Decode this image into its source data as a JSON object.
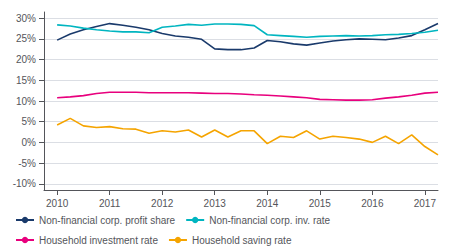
{
  "chart_data": {
    "type": "line",
    "x": [
      2010.0,
      2010.25,
      2010.5,
      2010.75,
      2011.0,
      2011.25,
      2011.5,
      2011.75,
      2012.0,
      2012.25,
      2012.5,
      2012.75,
      2013.0,
      2013.25,
      2013.5,
      2013.75,
      2014.0,
      2014.25,
      2014.5,
      2014.75,
      2015.0,
      2015.25,
      2015.5,
      2015.75,
      2016.0,
      2016.25,
      2016.5,
      2016.75,
      2017.0,
      2017.25
    ],
    "series": [
      {
        "name": "Non-financial corp. profit share",
        "color": "#1a3a6b",
        "values": [
          0.247,
          0.262,
          0.272,
          0.28,
          0.287,
          0.283,
          0.278,
          0.272,
          0.263,
          0.257,
          0.254,
          0.249,
          0.226,
          0.224,
          0.224,
          0.228,
          0.246,
          0.243,
          0.238,
          0.235,
          0.24,
          0.245,
          0.248,
          0.25,
          0.249,
          0.248,
          0.252,
          0.258,
          0.272,
          0.287
        ]
      },
      {
        "name": "Non-financial corp. inv. rate",
        "color": "#00b5c0",
        "values": [
          0.284,
          0.281,
          0.276,
          0.272,
          0.269,
          0.267,
          0.267,
          0.265,
          0.278,
          0.281,
          0.285,
          0.283,
          0.286,
          0.286,
          0.285,
          0.282,
          0.26,
          0.258,
          0.256,
          0.254,
          0.256,
          0.257,
          0.258,
          0.257,
          0.258,
          0.26,
          0.261,
          0.263,
          0.266,
          0.271
        ]
      },
      {
        "name": "Household investment rate",
        "color": "#e8007d",
        "values": [
          0.108,
          0.11,
          0.113,
          0.118,
          0.121,
          0.121,
          0.121,
          0.12,
          0.12,
          0.12,
          0.12,
          0.119,
          0.118,
          0.118,
          0.117,
          0.115,
          0.114,
          0.112,
          0.11,
          0.108,
          0.104,
          0.103,
          0.102,
          0.102,
          0.103,
          0.107,
          0.11,
          0.114,
          0.119,
          0.121
        ]
      },
      {
        "name": "Household saving rate",
        "color": "#f5a400",
        "values": [
          0.042,
          0.058,
          0.04,
          0.036,
          0.038,
          0.033,
          0.032,
          0.022,
          0.028,
          0.025,
          0.03,
          0.013,
          0.03,
          0.013,
          0.028,
          0.028,
          -0.003,
          0.015,
          0.012,
          0.028,
          0.008,
          0.015,
          0.012,
          0.008,
          0.0,
          0.015,
          -0.003,
          0.018,
          -0.01,
          -0.03
        ]
      }
    ],
    "xlim": [
      2009.75,
      2017.25
    ],
    "xticks": [
      2010,
      2011,
      2012,
      2013,
      2014,
      2015,
      2016,
      2017
    ],
    "ylim": [
      -0.115,
      0.315
    ],
    "yticks": [
      {
        "value": -0.1,
        "label": "-10%"
      },
      {
        "value": -0.05,
        "label": "-5%"
      },
      {
        "value": 0.0,
        "label": "0%"
      },
      {
        "value": 0.05,
        "label": "5%"
      },
      {
        "value": 0.1,
        "label": "10%"
      },
      {
        "value": 0.15,
        "label": "15%"
      },
      {
        "value": 0.2,
        "label": "20%"
      },
      {
        "value": 0.25,
        "label": "25%"
      },
      {
        "value": 0.3,
        "label": "30%"
      }
    ],
    "grid": true,
    "legend": "lower left"
  }
}
